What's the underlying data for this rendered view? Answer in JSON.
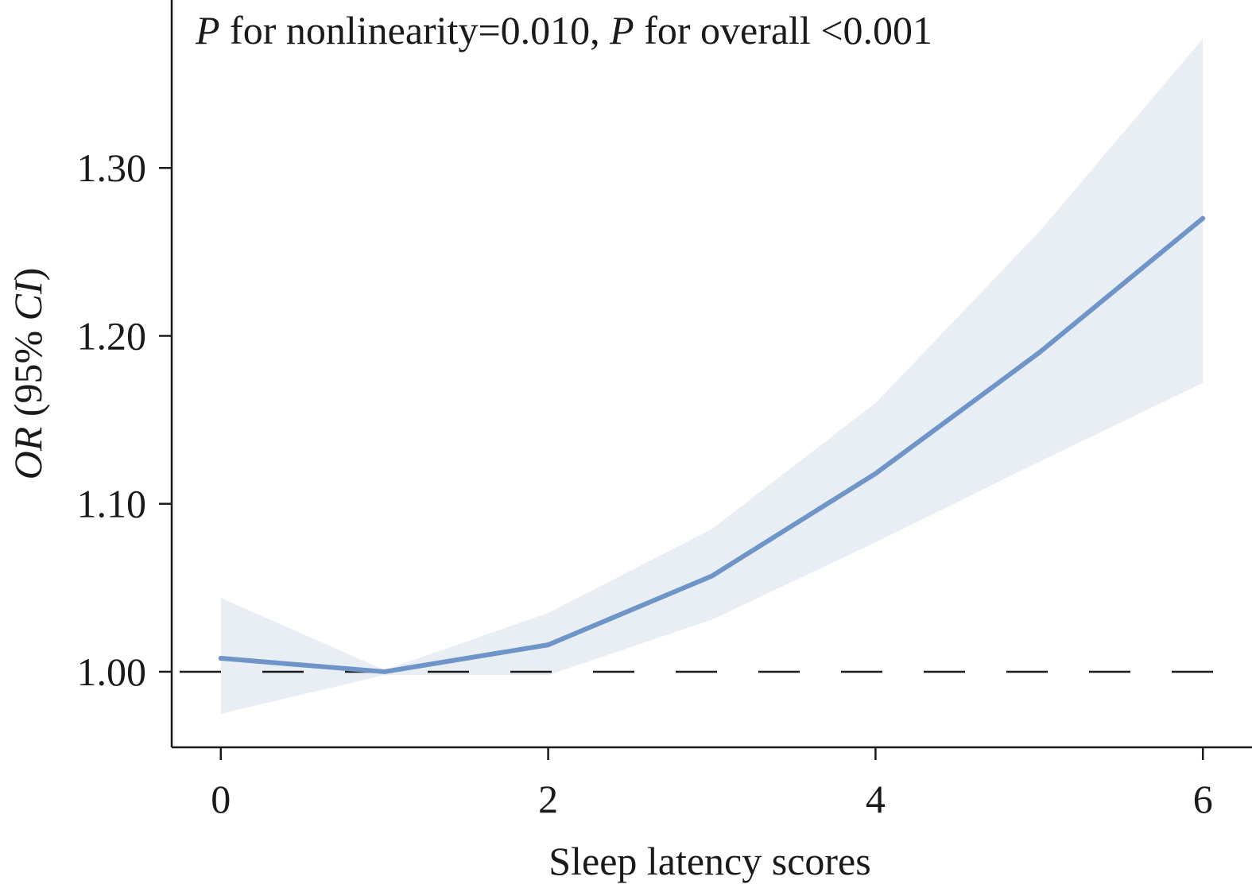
{
  "chart_data": {
    "type": "line",
    "annotation": {
      "p1_symbol": "P",
      "p1_text": " for nonlinearity=0.010, ",
      "p2_symbol": "P",
      "p2_text": " for overall <0.001"
    },
    "xlabel": "Sleep latency scores",
    "ylabel": {
      "italic": "OR",
      "open": " (95% ",
      "italic2": "CI",
      "close": ")"
    },
    "x_ticks": [
      0,
      2,
      4,
      6
    ],
    "x_tick_labels": [
      "0",
      "2",
      "4",
      "6"
    ],
    "y_ticks": [
      1.0,
      1.1,
      1.2,
      1.3
    ],
    "y_tick_labels": [
      "1.00",
      "1.10",
      "1.20",
      "1.30"
    ],
    "xlim": [
      -0.3,
      6.3
    ],
    "ylim": [
      0.955,
      1.4
    ],
    "reference_line": 1.0,
    "series": [
      {
        "x": [
          0,
          1,
          2,
          3,
          4,
          5,
          6
        ],
        "y": [
          1.008,
          1.0,
          1.016,
          1.057,
          1.118,
          1.19,
          1.27
        ],
        "lower": [
          0.975,
          0.998,
          0.998,
          1.031,
          1.077,
          1.125,
          1.172
        ],
        "upper": [
          1.044,
          1.001,
          1.035,
          1.085,
          1.16,
          1.262,
          1.377
        ]
      }
    ],
    "colors": {
      "line": "#6f95c8",
      "band": "#e9eef5",
      "axis": "#1a1a1a"
    },
    "grid": false
  }
}
